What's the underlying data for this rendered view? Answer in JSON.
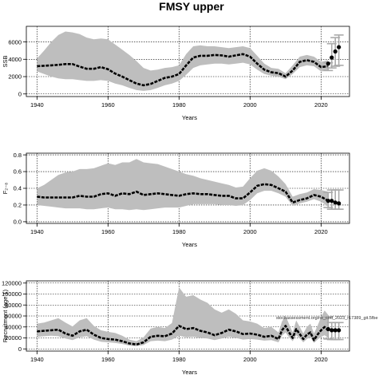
{
  "figure_title": "FMSY upper",
  "chart_data": [
    {
      "type": "line",
      "xlabel": "Years",
      "ylabel": "SSB",
      "xlim": [
        1937,
        2028
      ],
      "ylim": [
        -300,
        7800
      ],
      "xticks": [
        1940,
        1960,
        1980,
        2000,
        2020
      ],
      "yticks": [
        0,
        2000,
        4000,
        6000
      ],
      "grid": true,
      "median": {
        "x": [
          1940,
          1942,
          1944,
          1946,
          1948,
          1950,
          1952,
          1954,
          1956,
          1958,
          1960,
          1962,
          1964,
          1966,
          1968,
          1970,
          1972,
          1974,
          1976,
          1978,
          1980,
          1982,
          1984,
          1986,
          1988,
          1990,
          1992,
          1994,
          1996,
          1998,
          2000,
          2002,
          2004,
          2006,
          2008,
          2010,
          2012,
          2014,
          2016,
          2018,
          2020,
          2022
        ],
        "y": [
          3200,
          3250,
          3300,
          3350,
          3450,
          3450,
          3150,
          2900,
          2900,
          3100,
          2850,
          2350,
          2000,
          1600,
          1200,
          1000,
          1150,
          1500,
          1850,
          2000,
          2300,
          3300,
          4200,
          4400,
          4400,
          4500,
          4450,
          4300,
          4450,
          4600,
          4300,
          3500,
          2800,
          2500,
          2400,
          2000,
          2700,
          3700,
          3900,
          3700,
          3100,
          3200
        ]
      },
      "band": {
        "x": [
          1940,
          1942,
          1944,
          1946,
          1948,
          1950,
          1952,
          1954,
          1956,
          1958,
          1960,
          1962,
          1964,
          1966,
          1968,
          1970,
          1972,
          1974,
          1976,
          1978,
          1980,
          1982,
          1984,
          1986,
          1988,
          1990,
          1992,
          1994,
          1996,
          1998,
          2000,
          2002,
          2004,
          2006,
          2008,
          2010,
          2012,
          2014,
          2016,
          2018,
          2020,
          2022
        ],
        "lower": [
          2600,
          2300,
          2000,
          1800,
          1700,
          1700,
          1600,
          1500,
          1500,
          1600,
          1500,
          1200,
          1000,
          700,
          450,
          350,
          450,
          700,
          1000,
          1200,
          1500,
          2200,
          3000,
          3300,
          3400,
          3500,
          3500,
          3400,
          3500,
          3600,
          3400,
          2800,
          2300,
          2100,
          2000,
          1700,
          2300,
          3100,
          3300,
          3200,
          2600,
          2700
        ],
        "upper": [
          4100,
          5000,
          6000,
          6800,
          7200,
          7100,
          6900,
          6500,
          6300,
          6400,
          6300,
          5700,
          5100,
          4500,
          3800,
          3000,
          2700,
          2800,
          3000,
          3100,
          3300,
          4600,
          5500,
          5600,
          5500,
          5500,
          5400,
          5300,
          5400,
          5500,
          5300,
          4400,
          3500,
          3000,
          2900,
          2400,
          3300,
          4300,
          4500,
          4300,
          3700,
          3900
        ]
      },
      "points": {
        "x": [
          2022,
          2023,
          2024,
          2025
        ],
        "y": [
          3500,
          4200,
          4900,
          5400
        ],
        "err_low": [
          2700,
          3000,
          3200,
          3300
        ],
        "err_high": [
          3600,
          5800,
          6500,
          6800
        ]
      }
    },
    {
      "type": "line",
      "xlabel": "Years",
      "ylabel": "F₂₋₈",
      "xlim": [
        1937,
        2028
      ],
      "ylim": [
        -0.02,
        0.82
      ],
      "xticks": [
        1940,
        1960,
        1980,
        2000,
        2020
      ],
      "yticks": [
        "0.0",
        "0.2",
        "0.4",
        "0.6",
        "0.8"
      ],
      "grid": true,
      "median": {
        "x": [
          1940,
          1942,
          1944,
          1946,
          1948,
          1950,
          1952,
          1954,
          1956,
          1958,
          1960,
          1962,
          1964,
          1966,
          1968,
          1970,
          1972,
          1974,
          1976,
          1978,
          1980,
          1982,
          1984,
          1986,
          1988,
          1990,
          1992,
          1994,
          1996,
          1998,
          2000,
          2002,
          2004,
          2006,
          2008,
          2010,
          2012,
          2014,
          2016,
          2018,
          2020,
          2022
        ],
        "y": [
          0.3,
          0.29,
          0.29,
          0.29,
          0.29,
          0.29,
          0.31,
          0.3,
          0.3,
          0.33,
          0.34,
          0.31,
          0.34,
          0.33,
          0.36,
          0.32,
          0.33,
          0.34,
          0.33,
          0.32,
          0.31,
          0.33,
          0.34,
          0.33,
          0.33,
          0.32,
          0.31,
          0.31,
          0.28,
          0.28,
          0.35,
          0.43,
          0.45,
          0.44,
          0.4,
          0.36,
          0.23,
          0.26,
          0.28,
          0.32,
          0.3,
          0.25
        ]
      },
      "band": {
        "x": [
          1940,
          1942,
          1944,
          1946,
          1948,
          1950,
          1952,
          1954,
          1956,
          1958,
          1960,
          1962,
          1964,
          1966,
          1968,
          1970,
          1972,
          1974,
          1976,
          1978,
          1980,
          1982,
          1984,
          1986,
          1988,
          1990,
          1992,
          1994,
          1996,
          1998,
          2000,
          2002,
          2004,
          2006,
          2008,
          2010,
          2012,
          2014,
          2016,
          2018,
          2020,
          2022
        ],
        "lower": [
          0.2,
          0.19,
          0.18,
          0.17,
          0.16,
          0.16,
          0.16,
          0.15,
          0.15,
          0.16,
          0.17,
          0.15,
          0.15,
          0.14,
          0.15,
          0.14,
          0.15,
          0.16,
          0.17,
          0.17,
          0.17,
          0.19,
          0.21,
          0.21,
          0.21,
          0.21,
          0.2,
          0.2,
          0.19,
          0.2,
          0.26,
          0.34,
          0.37,
          0.37,
          0.34,
          0.3,
          0.19,
          0.22,
          0.24,
          0.27,
          0.24,
          0.18
        ],
        "upper": [
          0.4,
          0.44,
          0.5,
          0.56,
          0.59,
          0.6,
          0.63,
          0.63,
          0.64,
          0.67,
          0.7,
          0.68,
          0.71,
          0.71,
          0.75,
          0.71,
          0.7,
          0.69,
          0.66,
          0.63,
          0.6,
          0.57,
          0.55,
          0.52,
          0.5,
          0.48,
          0.46,
          0.44,
          0.41,
          0.42,
          0.52,
          0.61,
          0.64,
          0.61,
          0.54,
          0.45,
          0.3,
          0.33,
          0.35,
          0.39,
          0.38,
          0.36
        ]
      },
      "points": {
        "x": [
          2022,
          2023,
          2024,
          2025
        ],
        "y": [
          0.25,
          0.25,
          0.23,
          0.22
        ],
        "err_low": [
          0.17,
          0.15,
          0.15,
          0.15
        ],
        "err_high": [
          0.35,
          0.38,
          0.38,
          0.38
        ]
      }
    },
    {
      "type": "line",
      "xlabel": "Years",
      "ylabel": "Recruitment (age 1)",
      "xlim": [
        1937,
        2028
      ],
      "ylim": [
        -4000,
        124000
      ],
      "xticks": [
        1940,
        1960,
        1980,
        2000,
        2020
      ],
      "yticks": [
        0,
        20000,
        40000,
        60000,
        80000,
        100000,
        120000
      ],
      "grid": true,
      "annotation": "stockassessment.org/nz_cod_2023_r17389_git.5fbe",
      "median": {
        "x": [
          1940,
          1942,
          1944,
          1946,
          1948,
          1950,
          1952,
          1954,
          1956,
          1958,
          1960,
          1962,
          1964,
          1966,
          1968,
          1970,
          1972,
          1974,
          1976,
          1978,
          1980,
          1982,
          1984,
          1986,
          1988,
          1990,
          1992,
          1994,
          1996,
          1998,
          2000,
          2002,
          2004,
          2006,
          2008,
          2009,
          2010,
          2011,
          2012,
          2013,
          2014,
          2015,
          2016,
          2017,
          2018,
          2019,
          2020,
          2021,
          2022
        ],
        "y": [
          32000,
          33000,
          34000,
          35000,
          28000,
          24000,
          32000,
          35000,
          26000,
          20000,
          18000,
          17000,
          14000,
          10000,
          8000,
          12000,
          22000,
          24000,
          23000,
          28000,
          42000,
          36000,
          38000,
          33000,
          30000,
          25000,
          29000,
          35000,
          32000,
          27000,
          28000,
          26000,
          22000,
          24000,
          18000,
          34000,
          42000,
          30000,
          20000,
          36000,
          27000,
          18000,
          26000,
          30000,
          16000,
          26000,
          34000,
          40000,
          34000
        ]
      },
      "band": {
        "x": [
          1940,
          1942,
          1944,
          1946,
          1948,
          1950,
          1952,
          1954,
          1956,
          1958,
          1960,
          1962,
          1964,
          1966,
          1968,
          1970,
          1972,
          1974,
          1976,
          1978,
          1980,
          1982,
          1984,
          1986,
          1988,
          1990,
          1992,
          1994,
          1996,
          1998,
          2000,
          2002,
          2004,
          2006,
          2008,
          2009,
          2010,
          2011,
          2012,
          2013,
          2014,
          2015,
          2016,
          2017,
          2018,
          2019,
          2020,
          2021,
          2022
        ],
        "lower": [
          22000,
          23000,
          24000,
          23000,
          19000,
          16000,
          21000,
          23000,
          17000,
          13000,
          12000,
          11000,
          9000,
          6000,
          5000,
          7000,
          14000,
          15000,
          14000,
          17000,
          24000,
          21000,
          22000,
          20000,
          19000,
          16000,
          19000,
          22000,
          20000,
          17000,
          18000,
          17000,
          15000,
          16000,
          12000,
          24000,
          30000,
          21000,
          14000,
          25000,
          19000,
          12000,
          18000,
          21000,
          11000,
          17000,
          22000,
          25000,
          20000
        ],
        "upper": [
          46000,
          48000,
          52000,
          56000,
          48000,
          41000,
          52000,
          56000,
          42000,
          34000,
          31000,
          29000,
          24000,
          17000,
          14000,
          21000,
          37000,
          40000,
          38000,
          47000,
          112000,
          95000,
          98000,
          90000,
          84000,
          72000,
          66000,
          72000,
          64000,
          52000,
          50000,
          46000,
          38000,
          40000,
          30000,
          50000,
          60000,
          45000,
          30000,
          52000,
          40000,
          28000,
          40000,
          46000,
          28000,
          42000,
          58000,
          70000,
          62000
        ]
      },
      "points": {
        "x": [
          2022,
          2023,
          2024,
          2025
        ],
        "y": [
          36000,
          34000,
          34000,
          34000
        ],
        "err_low": [
          18000,
          17000,
          17000,
          17000
        ],
        "err_high": [
          58000,
          48000,
          48000,
          48000
        ]
      }
    }
  ]
}
